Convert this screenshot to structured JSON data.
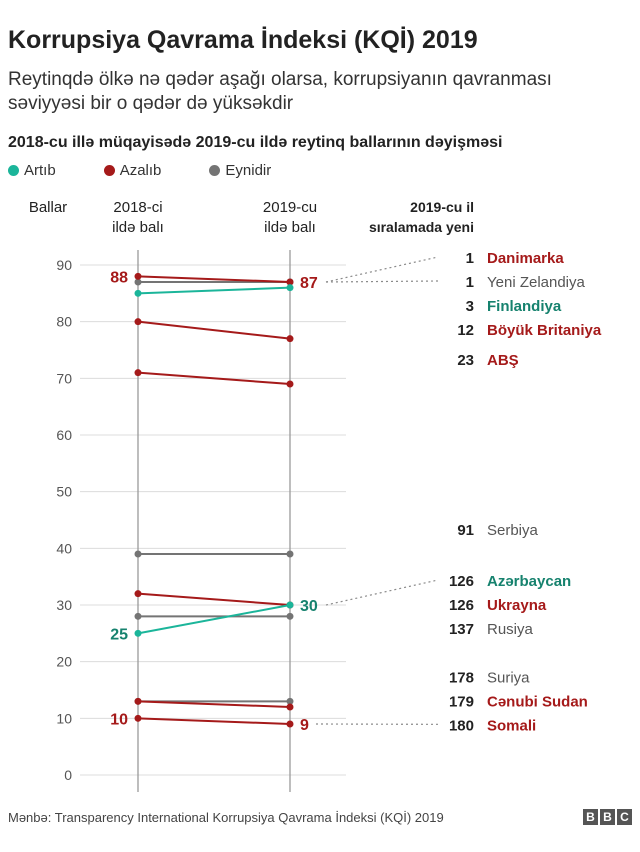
{
  "title": "Korrupsiya Qavrama İndeksi (KQİ) 2019",
  "subtitle": "Reytinqdə ölkə nə qədər aşağı olarsa, korrupsiyanın qavranması səviyyəsi bir o qədər də yüksəkdir",
  "heading": "2018-cu illə müqayisədə 2019-cu ildə reytinq ballarının dəyişməsi",
  "legend": {
    "up": "Artıb",
    "down": "Azalıb",
    "same": "Eynidir"
  },
  "colors": {
    "up": "#1bb59a",
    "down": "#a51a1a",
    "same": "#747474",
    "up_text": "#16826e",
    "grid": "#dcdcdc",
    "axis": "#9a9a9a"
  },
  "source": "Mənbə: Transparency International Korrupsiya Qavrama İndeksi (KQİ) 2019",
  "bbc_letters": [
    "B",
    "B",
    "C"
  ],
  "chart_data": {
    "type": "slope",
    "ylabel": "Ballar",
    "x": [
      "2018-ci ildə balı",
      "2019-cu ildə balı"
    ],
    "rank_header": "2019-cu il sıralamada yeni",
    "ylim": [
      0,
      90
    ],
    "yticks": [
      0,
      10,
      20,
      30,
      40,
      50,
      60,
      70,
      80,
      90
    ],
    "grid": true,
    "series": [
      {
        "name": "Danimarka",
        "v2018": 88,
        "v2019": 87,
        "rank": 1,
        "status": "down"
      },
      {
        "name": "Yeni Zelandiya",
        "v2018": 87,
        "v2019": 87,
        "rank": 1,
        "status": "same"
      },
      {
        "name": "Finlandiya",
        "v2018": 85,
        "v2019": 86,
        "rank": 3,
        "status": "up"
      },
      {
        "name": "Böyük Britaniya",
        "v2018": 80,
        "v2019": 77,
        "rank": 12,
        "status": "down"
      },
      {
        "name": "ABŞ",
        "v2018": 71,
        "v2019": 69,
        "rank": 23,
        "status": "down"
      },
      {
        "name": "Serbiya",
        "v2018": 39,
        "v2019": 39,
        "rank": 91,
        "status": "same"
      },
      {
        "name": "Azərbaycan",
        "v2018": 25,
        "v2019": 30,
        "rank": 126,
        "status": "up"
      },
      {
        "name": "Ukrayna",
        "v2018": 32,
        "v2019": 30,
        "rank": 126,
        "status": "down"
      },
      {
        "name": "Rusiya",
        "v2018": 28,
        "v2019": 28,
        "rank": 137,
        "status": "same"
      },
      {
        "name": "Suriya",
        "v2018": 13,
        "v2019": 13,
        "rank": 178,
        "status": "same"
      },
      {
        "name": "Cənubi Sudan",
        "v2018": 13,
        "v2019": 12,
        "rank": 179,
        "status": "down"
      },
      {
        "name": "Somali",
        "v2018": 10,
        "v2019": 9,
        "rank": 180,
        "status": "down"
      }
    ],
    "annotations": [
      {
        "text": "88",
        "side": "left",
        "value": 88,
        "status": "down"
      },
      {
        "text": "87",
        "side": "right",
        "value": 87,
        "status": "down",
        "leader_to": [
          "Danimarka",
          "Yeni Zelandiya"
        ]
      },
      {
        "text": "25",
        "side": "left",
        "value": 25,
        "status": "up"
      },
      {
        "text": "30",
        "side": "right",
        "value": 30,
        "status": "up",
        "leader_to": [
          "Azərbaycan"
        ]
      },
      {
        "text": "10",
        "side": "left",
        "value": 10,
        "status": "down"
      },
      {
        "text": "9",
        "side": "right",
        "value": 9,
        "status": "down",
        "leader_to": [
          "Somali"
        ]
      }
    ]
  }
}
